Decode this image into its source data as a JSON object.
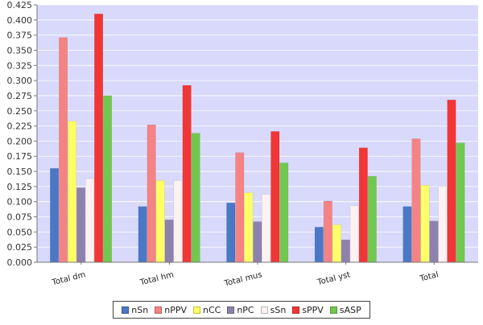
{
  "chart_data": {
    "type": "bar",
    "categories": [
      "Total dm",
      "Total hm",
      "Total mus",
      "Total yst",
      "Total"
    ],
    "ylim": [
      0,
      0.425
    ],
    "yticks": [
      "0.000",
      "0.025",
      "0.050",
      "0.075",
      "0.100",
      "0.125",
      "0.150",
      "0.175",
      "0.200",
      "0.225",
      "0.250",
      "0.275",
      "0.300",
      "0.325",
      "0.350",
      "0.375",
      "0.400",
      "0.425"
    ],
    "grid": true,
    "legend_position": "bottom",
    "plot_background": "#d9d9fb",
    "series": [
      {
        "name": "nSn",
        "color": "#4a78c6",
        "values": [
          0.155,
          0.092,
          0.098,
          0.058,
          0.092
        ]
      },
      {
        "name": "nPPV",
        "color": "#f58383",
        "values": [
          0.371,
          0.227,
          0.181,
          0.101,
          0.204
        ]
      },
      {
        "name": "nCC",
        "color": "#ffff66",
        "values": [
          0.233,
          0.135,
          0.115,
          0.062,
          0.127
        ]
      },
      {
        "name": "nPC",
        "color": "#8e82ad",
        "values": [
          0.123,
          0.07,
          0.067,
          0.037,
          0.068
        ]
      },
      {
        "name": "sSn",
        "color": "#fdf2f2",
        "values": [
          0.138,
          0.135,
          0.112,
          0.093,
          0.125
        ]
      },
      {
        "name": "sPPV",
        "color": "#f23535",
        "values": [
          0.41,
          0.292,
          0.216,
          0.189,
          0.268
        ]
      },
      {
        "name": "sASP",
        "color": "#72c74f",
        "values": [
          0.275,
          0.213,
          0.164,
          0.142,
          0.197
        ]
      }
    ]
  }
}
